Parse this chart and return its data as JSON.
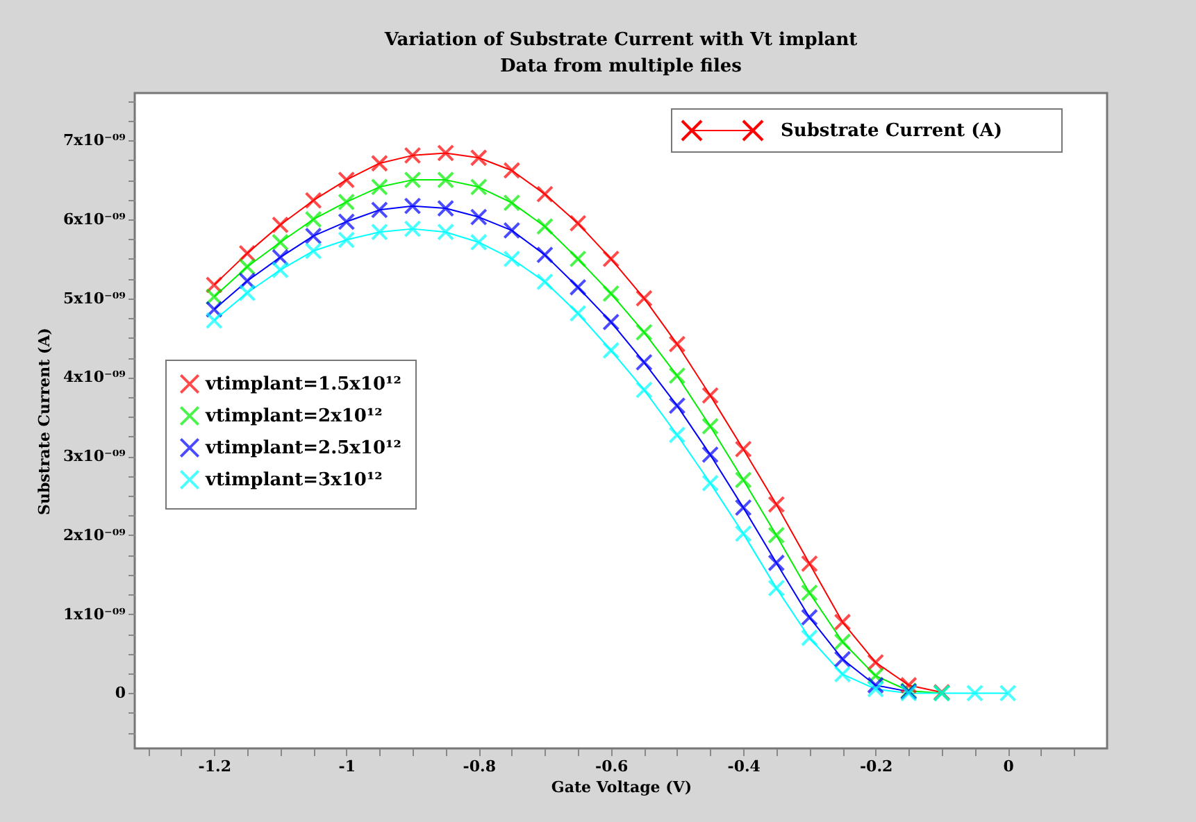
{
  "chart_data": {
    "type": "line",
    "title": "Variation of Substrate Current with Vt implant",
    "subtitle": "Data from multiple files",
    "xlabel": "Gate Voltage (V)",
    "ylabel": "Substrate Current (A)",
    "annotations": [
      "Substrate Current (A)"
    ],
    "x": [
      -1.2,
      -1.15,
      -1.1,
      -1.05,
      -1.0,
      -0.95,
      -0.9,
      -0.85,
      -0.8,
      -0.75,
      -0.7,
      -0.65,
      -0.6,
      -0.55,
      -0.5,
      -0.45,
      -0.4,
      -0.35,
      -0.3,
      -0.25,
      -0.2,
      -0.15,
      -0.1,
      -0.05,
      0
    ],
    "series": [
      {
        "name": "vtimplant=1.5x10¹²",
        "color": "#ff0000",
        "values": [
          5.17e-09,
          5.57e-09,
          5.93e-09,
          6.24e-09,
          6.5e-09,
          6.71e-09,
          6.81e-09,
          6.84e-09,
          6.78e-09,
          6.62e-09,
          6.32e-09,
          5.95e-09,
          5.5e-09,
          5e-09,
          4.42e-09,
          3.77e-09,
          3.09e-09,
          2.39e-09,
          1.64e-09,
          9e-10,
          3.9e-10,
          1e-10,
          1e-11,
          null,
          null
        ]
      },
      {
        "name": "vtimplant=2x10¹²",
        "color": "#00ee00",
        "values": [
          5.02e-09,
          5.4e-09,
          5.71e-09,
          6e-09,
          6.22e-09,
          6.41e-09,
          6.5e-09,
          6.5e-09,
          6.41e-09,
          6.21e-09,
          5.91e-09,
          5.5e-09,
          5.06e-09,
          4.57e-09,
          4.02e-09,
          3.38e-09,
          2.7e-09,
          2e-09,
          1.27e-09,
          6.5e-10,
          2.2e-10,
          3e-11,
          0,
          null,
          null
        ]
      },
      {
        "name": "vtimplant=2.5x10¹²",
        "color": "#0000ff",
        "values": [
          4.86e-09,
          5.22e-09,
          5.52e-09,
          5.79e-09,
          5.97e-09,
          6.12e-09,
          6.17e-09,
          6.14e-09,
          6.03e-09,
          5.86e-09,
          5.55e-09,
          5.14e-09,
          4.7e-09,
          4.19e-09,
          3.64e-09,
          3.02e-09,
          2.35e-09,
          1.65e-09,
          9.6e-10,
          4.3e-10,
          1e-10,
          2e-11,
          null,
          null,
          null
        ]
      },
      {
        "name": "vtimplant=3x10¹²",
        "color": "#00ffff",
        "values": [
          4.72e-09,
          5.07e-09,
          5.36e-09,
          5.6e-09,
          5.74e-09,
          5.84e-09,
          5.88e-09,
          5.84e-09,
          5.71e-09,
          5.5e-09,
          5.21e-09,
          4.81e-09,
          4.34e-09,
          3.84e-09,
          3.27e-09,
          2.66e-09,
          2.02e-09,
          1.33e-09,
          7e-10,
          2.4e-10,
          5e-11,
          0,
          0,
          0,
          0
        ]
      }
    ],
    "xlim": [
      -1.32,
      0.15
    ],
    "xticks": [
      {
        "value": -1.3,
        "label": null
      },
      {
        "value": -1.25,
        "label": null
      },
      -1.2,
      {
        "value": -1.15,
        "label": null
      },
      {
        "value": -1.1,
        "label": null
      },
      {
        "value": -1.05,
        "label": null
      },
      -1,
      {
        "value": -0.95,
        "label": null
      },
      {
        "value": -0.9,
        "label": null
      },
      {
        "value": -0.85,
        "label": null
      },
      -0.8,
      {
        "value": -0.75,
        "label": null
      },
      {
        "value": -0.7,
        "label": null
      },
      {
        "value": -0.65,
        "label": null
      },
      -0.6,
      {
        "value": -0.55,
        "label": null
      },
      {
        "value": -0.5,
        "label": null
      },
      {
        "value": -0.45,
        "label": null
      },
      -0.4,
      {
        "value": -0.35,
        "label": null
      },
      {
        "value": -0.3,
        "label": null
      },
      {
        "value": -0.25,
        "label": null
      },
      -0.2,
      {
        "value": -0.15,
        "label": null
      },
      {
        "value": -0.1,
        "label": null
      },
      {
        "value": -0.05,
        "label": null
      },
      0,
      {
        "value": 0.05,
        "label": null
      },
      {
        "value": 0.1,
        "label": null
      }
    ],
    "ylim": [
      -7e-10,
      7.6e-09
    ],
    "yticks": [
      {
        "value": -5e-10,
        "label": null
      },
      {
        "value": -2.5e-10,
        "label": null
      },
      0,
      {
        "value": 2.5e-10,
        "label": null
      },
      {
        "value": 5e-10,
        "label": null
      },
      {
        "value": 7.5e-10,
        "label": null
      },
      {
        "value": 1e-09,
        "label": "1x10⁻⁰⁹"
      },
      {
        "value": 1.25e-09,
        "label": null
      },
      {
        "value": 1.5e-09,
        "label": null
      },
      {
        "value": 1.75e-09,
        "label": null
      },
      {
        "value": 2e-09,
        "label": "2x10⁻⁰⁹"
      },
      {
        "value": 2.25e-09,
        "label": null
      },
      {
        "value": 2.5e-09,
        "label": null
      },
      {
        "value": 2.75e-09,
        "label": null
      },
      {
        "value": 3e-09,
        "label": "3x10⁻⁰⁹"
      },
      {
        "value": 3.25e-09,
        "label": null
      },
      {
        "value": 3.5e-09,
        "label": null
      },
      {
        "value": 3.75e-09,
        "label": null
      },
      {
        "value": 4e-09,
        "label": "4x10⁻⁰⁹"
      },
      {
        "value": 4.25e-09,
        "label": null
      },
      {
        "value": 4.5e-09,
        "label": null
      },
      {
        "value": 4.75e-09,
        "label": null
      },
      {
        "value": 5e-09,
        "label": "5x10⁻⁰⁹"
      },
      {
        "value": 5.25e-09,
        "label": null
      },
      {
        "value": 5.5e-09,
        "label": null
      },
      {
        "value": 5.75e-09,
        "label": null
      },
      {
        "value": 6e-09,
        "label": "6x10⁻⁰⁹"
      },
      {
        "value": 6.25e-09,
        "label": null
      },
      {
        "value": 6.5e-09,
        "label": null
      },
      {
        "value": 6.75e-09,
        "label": null
      },
      {
        "value": 7e-09,
        "label": "7x10⁻⁰⁹"
      },
      {
        "value": 7.25e-09,
        "label": null
      },
      {
        "value": 7.5e-09,
        "label": null
      }
    ],
    "grid": false,
    "legend": "left",
    "marker": "cross",
    "line_style": "solid"
  }
}
